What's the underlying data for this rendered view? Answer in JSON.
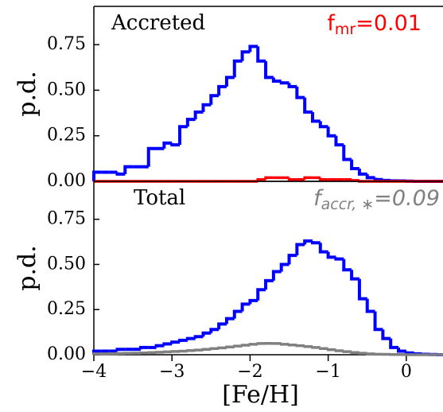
{
  "chart_data": [
    {
      "type": "histogram",
      "annotations": [
        {
          "text": "Accreted"
        }
      ],
      "fraction_label": {
        "main": "f",
        "sub": "mr",
        "rest": "=0.01",
        "color": "#ff0000",
        "italic": false
      },
      "ylabel": "p.d.",
      "bins": [
        -4,
        -3.9,
        -3.8,
        -3.7,
        -3.6,
        -3.5,
        -3.4,
        -3.3,
        -3.2,
        -3.1,
        -3,
        -2.9,
        -2.8,
        -2.7,
        -2.6,
        -2.5,
        -2.4,
        -2.3,
        -2.2,
        -2.1,
        -2,
        -1.9,
        -1.8,
        -1.7,
        -1.6,
        -1.5,
        -1.4,
        -1.3,
        -1.2,
        -1.1,
        -1,
        -0.9,
        -0.8,
        -0.7,
        -0.6,
        -0.5,
        -0.4,
        -0.3,
        -0.2,
        -0.1,
        0,
        0.1,
        0.2,
        0.3,
        0.4,
        0.5
      ],
      "series": [
        {
          "color": "#0000ff",
          "values": [
            0.05,
            0.05,
            0.05,
            0.04,
            0.08,
            0.08,
            0.08,
            0.18,
            0.18,
            0.21,
            0.2,
            0.3,
            0.34,
            0.38,
            0.42,
            0.47,
            0.52,
            0.57,
            0.66,
            0.71,
            0.74,
            0.66,
            0.57,
            0.55,
            0.54,
            0.52,
            0.46,
            0.38,
            0.33,
            0.3,
            0.25,
            0.2,
            0.12,
            0.07,
            0.04,
            0.02,
            0.01,
            0.005,
            0.003,
            0.002,
            0.001,
            0,
            0,
            0,
            0
          ]
        },
        {
          "color": "#ff0000",
          "values": [
            0,
            0,
            0,
            0,
            0,
            0,
            0,
            0,
            0,
            0,
            0,
            0,
            0,
            0,
            0,
            0,
            0,
            0,
            0,
            0,
            0,
            0.01,
            0.02,
            0.02,
            0.02,
            0.01,
            0.01,
            0.02,
            0.02,
            0.01,
            0.01,
            0.01,
            0.01,
            0.005,
            0,
            0,
            0,
            0,
            0,
            0,
            0,
            0,
            0,
            0,
            0
          ]
        }
      ],
      "xlim": [
        -4,
        0.47
      ],
      "ylim": [
        0,
        0.96
      ],
      "yticks": [
        {
          "value": 0,
          "label": "0.00"
        },
        {
          "value": 0.25,
          "label": "0.25"
        },
        {
          "value": 0.5,
          "label": "0.50"
        },
        {
          "value": 0.75,
          "label": "0.75"
        }
      ]
    },
    {
      "type": "histogram",
      "annotations": [
        {
          "text": "Total"
        }
      ],
      "fraction_label": {
        "main": "f",
        "sub": "accr, ∗",
        "rest": "=0.09",
        "color": "#808080",
        "italic": true
      },
      "ylabel": "p.d.",
      "xlabel": "[Fe/H]",
      "bins": [
        -4,
        -3.9,
        -3.8,
        -3.7,
        -3.6,
        -3.5,
        -3.4,
        -3.3,
        -3.2,
        -3.1,
        -3,
        -2.9,
        -2.8,
        -2.7,
        -2.6,
        -2.5,
        -2.4,
        -2.3,
        -2.2,
        -2.1,
        -2,
        -1.9,
        -1.8,
        -1.7,
        -1.6,
        -1.5,
        -1.4,
        -1.3,
        -1.2,
        -1.1,
        -1,
        -0.9,
        -0.8,
        -0.7,
        -0.6,
        -0.5,
        -0.4,
        -0.3,
        -0.2,
        -0.1,
        0,
        0.1,
        0.2,
        0.3,
        0.4,
        0.5
      ],
      "series": [
        {
          "color": "#0000ff",
          "values": [
            0.02,
            0.02,
            0.02,
            0.03,
            0.03,
            0.03,
            0.04,
            0.04,
            0.05,
            0.06,
            0.07,
            0.08,
            0.09,
            0.1,
            0.12,
            0.14,
            0.17,
            0.2,
            0.24,
            0.28,
            0.3,
            0.36,
            0.41,
            0.46,
            0.5,
            0.55,
            0.61,
            0.63,
            0.62,
            0.57,
            0.54,
            0.53,
            0.47,
            0.42,
            0.31,
            0.24,
            0.14,
            0.09,
            0.04,
            0.02,
            0.01,
            0.005,
            0.002,
            0.001,
            0
          ]
        },
        {
          "color": "#808080",
          "values": [
            0.005,
            0.005,
            0.006,
            0.007,
            0.008,
            0.009,
            0.01,
            0.012,
            0.014,
            0.016,
            0.018,
            0.02,
            0.023,
            0.026,
            0.03,
            0.034,
            0.038,
            0.043,
            0.048,
            0.053,
            0.058,
            0.062,
            0.063,
            0.062,
            0.058,
            0.054,
            0.05,
            0.045,
            0.04,
            0.034,
            0.028,
            0.022,
            0.017,
            0.012,
            0.008,
            0.005,
            0.003,
            0.002,
            0.001,
            0.001,
            0,
            0,
            0,
            0,
            0
          ]
        }
      ],
      "xlim": [
        -4,
        0.47
      ],
      "ylim": [
        0,
        0.96
      ],
      "xticks": [
        {
          "value": -4,
          "label": "−4"
        },
        {
          "value": -3,
          "label": "−3"
        },
        {
          "value": -2,
          "label": "−2"
        },
        {
          "value": -1,
          "label": "−1"
        },
        0
      ],
      "yticks": [
        {
          "value": 0,
          "label": "0.00"
        },
        {
          "value": 0.25,
          "label": "0.25"
        },
        {
          "value": 0.5,
          "label": "0.50"
        },
        {
          "value": 0.75,
          "label": "0.75"
        }
      ]
    }
  ]
}
